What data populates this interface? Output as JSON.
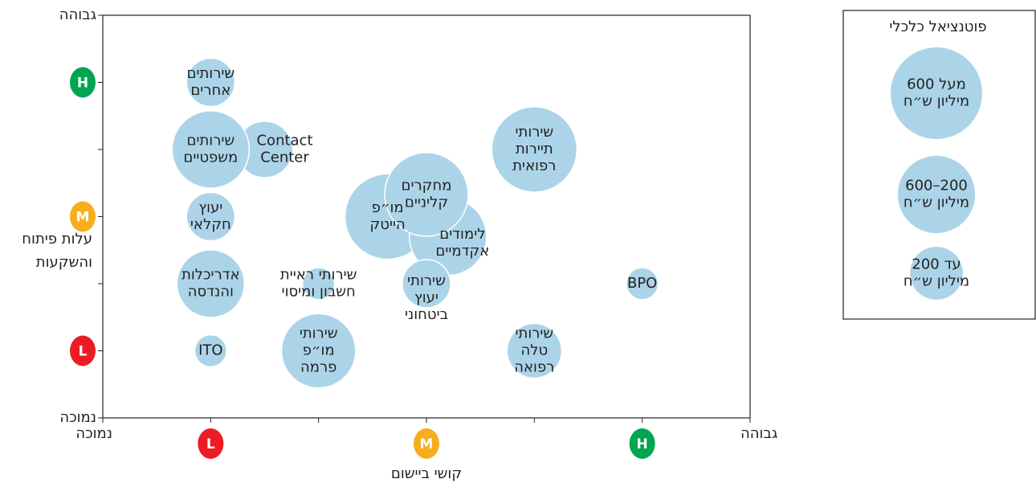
{
  "chart_data": {
    "type": "bubble",
    "x_label": "קושי ביישום",
    "y_label": [
      "עלות פיתוח",
      "והשקעות"
    ],
    "xlim": [
      0,
      6
    ],
    "ylim": [
      0,
      6
    ],
    "xticks": [
      {
        "value": 0,
        "label": "נמוכה"
      },
      {
        "value": 1,
        "label": "L"
      },
      {
        "value": 2,
        "label": null
      },
      {
        "value": 3,
        "label": "M"
      },
      {
        "value": 4,
        "label": null
      },
      {
        "value": 5,
        "label": "H"
      },
      {
        "value": 6,
        "label": "גבוהה"
      }
    ],
    "yticks": [
      {
        "value": 0,
        "label": "נמוכה"
      },
      {
        "value": 1,
        "label": "L"
      },
      {
        "value": 2,
        "label": null
      },
      {
        "value": 3,
        "label": "M"
      },
      {
        "value": 4,
        "label": null
      },
      {
        "value": 5,
        "label": "H"
      },
      {
        "value": 6,
        "label": "גבוהה"
      }
    ],
    "badge_colors": {
      "L": "#ed1c24",
      "M": "#f7ae1d",
      "H": "#00a551"
    },
    "color": "#abd4e8",
    "points": [
      {
        "name": [
          "Contact",
          "Center"
        ],
        "x": 1.5,
        "y": 4,
        "size": 340
      },
      {
        "name": [
          "שירותים",
          "אחרים"
        ],
        "x": 1,
        "y": 5,
        "size": 250
      },
      {
        "name": [
          "שירותים",
          "משפטיים"
        ],
        "x": 1,
        "y": 4,
        "size": 640
      },
      {
        "name": [
          "יעוץ",
          "חקלאי"
        ],
        "x": 1,
        "y": 3,
        "size": 250
      },
      {
        "name": [
          "אדריכלות",
          "והנדסה"
        ],
        "x": 1,
        "y": 2,
        "size": 490
      },
      {
        "name": [
          "שירותי ראיית",
          "חשבון ומיסוי"
        ],
        "x": 2,
        "y": 2,
        "size": 110
      },
      {
        "name": [
          "ITO"
        ],
        "x": 1,
        "y": 1,
        "size": 110
      },
      {
        "name": [
          "שירותי",
          "מו״פ",
          "פרמה"
        ],
        "x": 2,
        "y": 1,
        "size": 590
      },
      {
        "name": [
          "מו״פ",
          "הייטק"
        ],
        "x": 2.64,
        "y": 3,
        "size": 780
      },
      {
        "name": [
          "לימודים",
          "אקדמיים"
        ],
        "x": 3.2,
        "y": 2.7,
        "size": 640
      },
      {
        "name": [
          "מחקרים",
          "קליניים"
        ],
        "x": 3,
        "y": 3.33,
        "size": 750
      },
      {
        "name": [
          "שירותי",
          "יעוץ",
          "ביטחוני"
        ],
        "x": 3,
        "y": 2,
        "size": 250
      },
      {
        "name": [
          "שירותי",
          "תיירות",
          "רפואית"
        ],
        "x": 4,
        "y": 4,
        "size": 780
      },
      {
        "name": [
          "שירותי",
          "טלה",
          "רפואה"
        ],
        "x": 4,
        "y": 1,
        "size": 320
      },
      {
        "name": [
          "BPO"
        ],
        "x": 5,
        "y": 2,
        "size": 110
      }
    ],
    "size_legend": {
      "title": "פוטנציאל כלכלי",
      "items": [
        {
          "lines": [
            "מעל 600",
            "מיליון ש״ח"
          ],
          "size": 900
        },
        {
          "lines": [
            "600–200",
            "מיליון ש״ח"
          ],
          "size": 640
        },
        {
          "lines": [
            "עד 200",
            "מיליון ש״ח"
          ],
          "size": 300
        }
      ]
    }
  }
}
